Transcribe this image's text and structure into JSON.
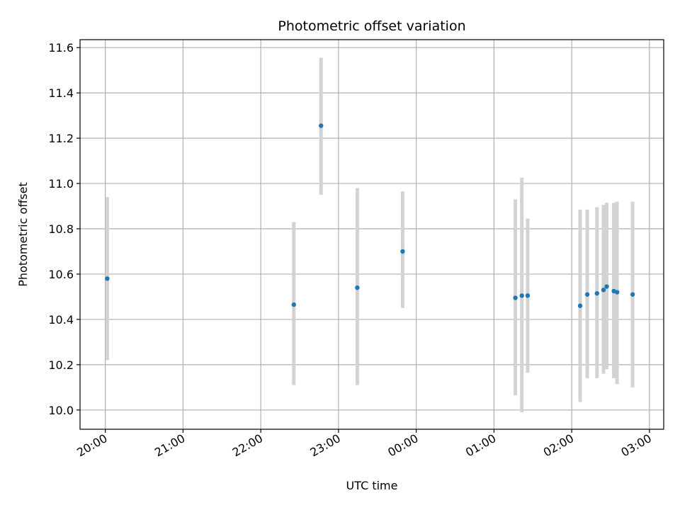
{
  "chart_data": {
    "type": "scatter",
    "title": "Photometric offset variation",
    "xlabel": "UTC time",
    "ylabel": "Photometric offset",
    "grid": true,
    "x_unit": "minutes since 20:00 UTC",
    "xlim": [
      -19.5,
      431
    ],
    "ylim": [
      9.915,
      11.635
    ],
    "x_ticks": [
      {
        "value": 0,
        "label": "20:00"
      },
      {
        "value": 60,
        "label": "21:00"
      },
      {
        "value": 120,
        "label": "22:00"
      },
      {
        "value": 180,
        "label": "23:00"
      },
      {
        "value": 240,
        "label": "00:00"
      },
      {
        "value": 300,
        "label": "01:00"
      },
      {
        "value": 360,
        "label": "02:00"
      },
      {
        "value": 420,
        "label": "03:00"
      }
    ],
    "y_ticks": [
      {
        "value": 10.0,
        "label": "10.0"
      },
      {
        "value": 10.2,
        "label": "10.2"
      },
      {
        "value": 10.4,
        "label": "10.4"
      },
      {
        "value": 10.6,
        "label": "10.6"
      },
      {
        "value": 10.8,
        "label": "10.8"
      },
      {
        "value": 11.0,
        "label": "11.0"
      },
      {
        "value": 11.2,
        "label": "11.2"
      },
      {
        "value": 11.4,
        "label": "11.4"
      },
      {
        "value": 11.6,
        "label": "11.6"
      }
    ],
    "colors": {
      "point": "#1f77b4",
      "errorbar": "#d3d3d3",
      "grid": "#b0b0b0"
    },
    "points": [
      {
        "x": 1.5,
        "y": 10.58,
        "err_low": 10.22,
        "err_high": 10.94
      },
      {
        "x": 145.5,
        "y": 10.465,
        "err_low": 10.11,
        "err_high": 10.83
      },
      {
        "x": 166.5,
        "y": 11.255,
        "err_low": 10.95,
        "err_high": 11.555
      },
      {
        "x": 194.5,
        "y": 10.54,
        "err_low": 10.11,
        "err_high": 10.98
      },
      {
        "x": 229.5,
        "y": 10.7,
        "err_low": 10.45,
        "err_high": 10.965
      },
      {
        "x": 316.5,
        "y": 10.495,
        "err_low": 10.065,
        "err_high": 10.93
      },
      {
        "x": 321.5,
        "y": 10.505,
        "err_low": 9.99,
        "err_high": 11.025
      },
      {
        "x": 326.0,
        "y": 10.505,
        "err_low": 10.165,
        "err_high": 10.845
      },
      {
        "x": 366.5,
        "y": 10.46,
        "err_low": 10.035,
        "err_high": 10.885
      },
      {
        "x": 372.0,
        "y": 10.51,
        "err_low": 10.14,
        "err_high": 10.885
      },
      {
        "x": 379.5,
        "y": 10.515,
        "err_low": 10.14,
        "err_high": 10.895
      },
      {
        "x": 384.5,
        "y": 10.53,
        "err_low": 10.16,
        "err_high": 10.905
      },
      {
        "x": 387.0,
        "y": 10.545,
        "err_low": 10.18,
        "err_high": 10.915
      },
      {
        "x": 392.5,
        "y": 10.525,
        "err_low": 10.14,
        "err_high": 10.915
      },
      {
        "x": 395.0,
        "y": 10.52,
        "err_low": 10.115,
        "err_high": 10.92
      },
      {
        "x": 407.0,
        "y": 10.51,
        "err_low": 10.1,
        "err_high": 10.92
      }
    ]
  }
}
